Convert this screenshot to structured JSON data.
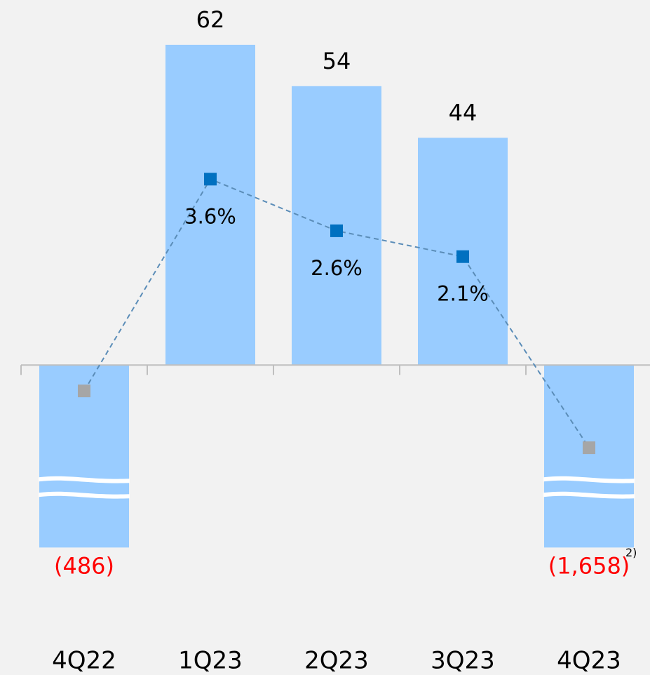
{
  "chart_data": {
    "type": "bar",
    "categories": [
      "4Q22",
      "1Q23",
      "2Q23",
      "3Q23",
      "4Q23"
    ],
    "series": [
      {
        "type": "bar",
        "color": "#99ccff",
        "negative_label_color": "#ff0000",
        "values": [
          -486,
          62,
          54,
          44,
          -1658
        ],
        "value_labels": [
          "(486)",
          "62",
          "54",
          "44",
          "(1,658)"
        ]
      },
      {
        "type": "line",
        "axis": "y2",
        "color": "#5b8db8",
        "point_colors": [
          "#a6a6a6",
          "#0070c0",
          "#0070c0",
          "#0070c0",
          "#a6a6a6"
        ],
        "values": [
          -0.5,
          3.6,
          2.6,
          2.1,
          -1.6
        ],
        "value_labels": [
          null,
          "3.6%",
          "2.6%",
          "2.1%",
          null
        ]
      }
    ],
    "ylim": [
      -60,
      70
    ],
    "y2lim": [
      -6,
      7
    ],
    "annotations": [
      {
        "text": "2)",
        "category": 4
      }
    ]
  }
}
